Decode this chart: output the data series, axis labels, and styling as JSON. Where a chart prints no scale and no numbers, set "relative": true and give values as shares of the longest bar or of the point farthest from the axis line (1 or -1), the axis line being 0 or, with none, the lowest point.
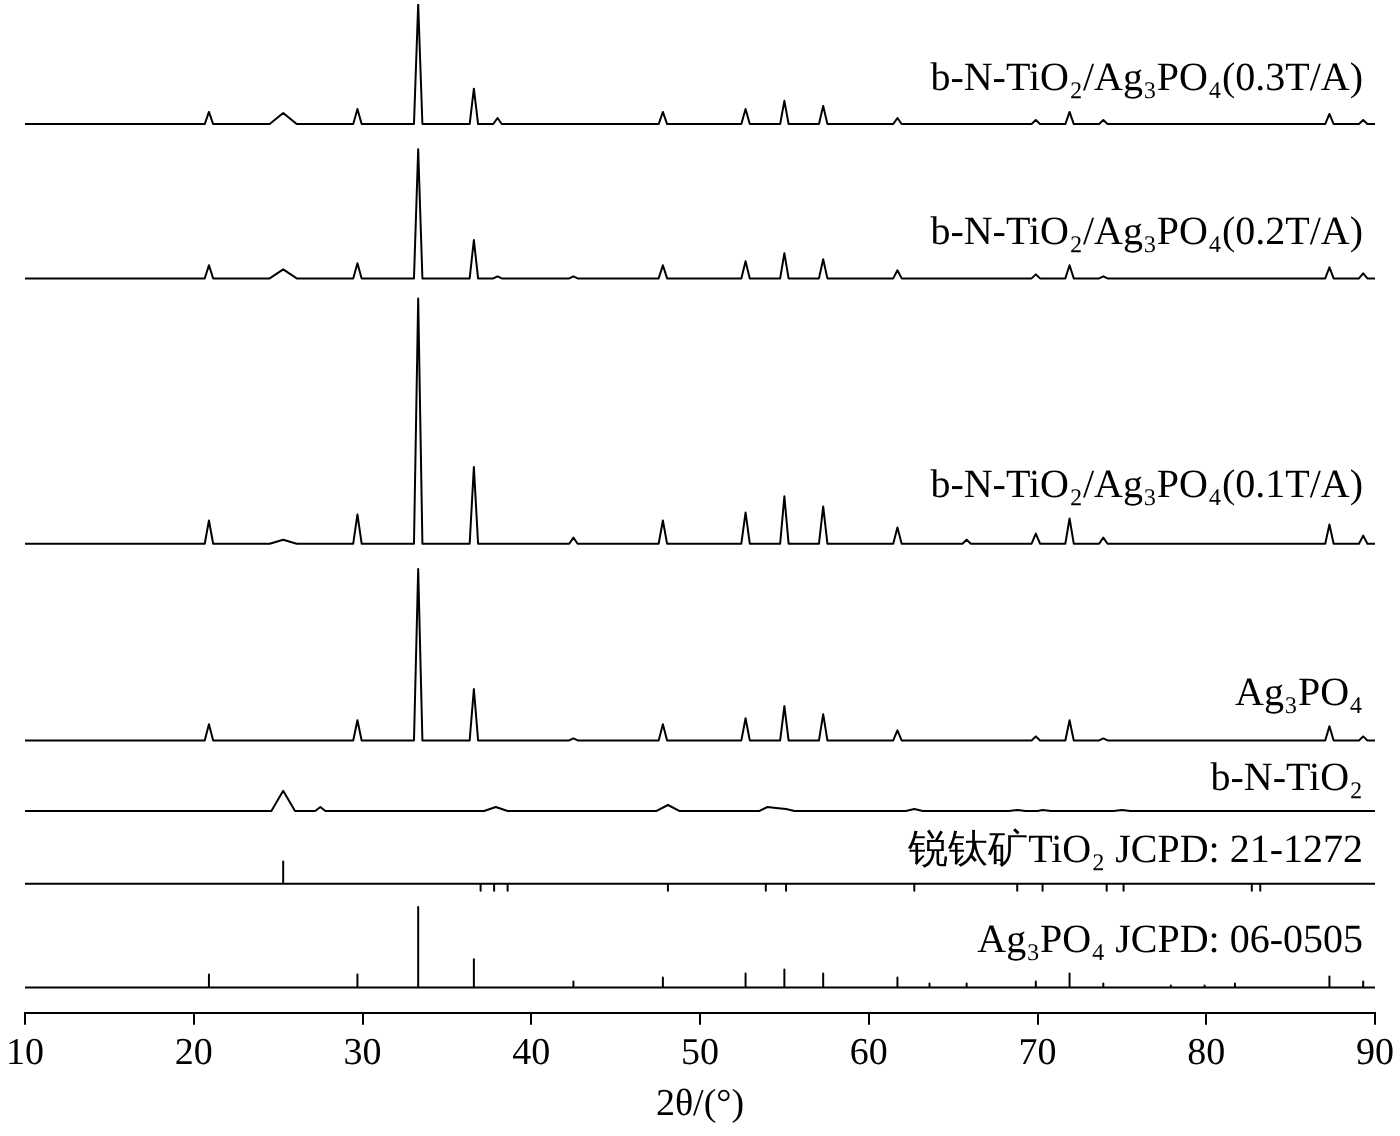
{
  "chart_data": {
    "type": "line",
    "relative": true,
    "xlabel": "2θ/(°)",
    "xlim": [
      10,
      90
    ],
    "xticks": [
      10,
      20,
      30,
      40,
      50,
      60,
      70,
      80,
      90
    ],
    "x": [
      10,
      20.65,
      20.9,
      21.15,
      24.5,
      25.3,
      26.1,
      29.45,
      29.7,
      29.95,
      33.05,
      33.3,
      33.55,
      36.35,
      36.6,
      36.85,
      37.75,
      38,
      38.25,
      42.25,
      42.5,
      42.75,
      47.55,
      47.8,
      48.05,
      52.45,
      52.7,
      52.95,
      54.75,
      55,
      55.25,
      57.05,
      57.3,
      57.55,
      61.45,
      61.7,
      61.95,
      65.55,
      65.8,
      66.05,
      69.65,
      69.9,
      70.15,
      71.65,
      71.9,
      72.15,
      73.65,
      73.9,
      74.15,
      87.05,
      87.3,
      87.55,
      89.05,
      89.3,
      89.55,
      90
    ],
    "series": [
      {
        "name": "b-N-TiO₂/Ag₃PO₄(0.3T/A)",
        "color": "#000000",
        "values": [
          0.881,
          0.881,
          0.893,
          0.881,
          0.881,
          0.892,
          0.881,
          0.881,
          0.896,
          0.881,
          0.881,
          1.0,
          0.881,
          0.881,
          0.916,
          0.881,
          0.881,
          0.887,
          0.881,
          0.881,
          0.881,
          0.881,
          0.881,
          0.893,
          0.881,
          0.881,
          0.896,
          0.881,
          0.881,
          0.904,
          0.881,
          0.881,
          0.899,
          0.881,
          0.881,
          0.887,
          0.881,
          0.881,
          0.881,
          0.881,
          0.881,
          0.885,
          0.881,
          0.881,
          0.893,
          0.881,
          0.881,
          0.885,
          0.881,
          0.881,
          0.891,
          0.881,
          0.881,
          0.885,
          0.881,
          0.881
        ]
      },
      {
        "name": "b-N-TiO₂/Ag₃PO₄(0.2T/A)",
        "color": "#000000",
        "values": [
          0.728,
          0.728,
          0.741,
          0.728,
          0.728,
          0.737,
          0.728,
          0.728,
          0.743,
          0.728,
          0.728,
          0.856,
          0.728,
          0.728,
          0.766,
          0.728,
          0.728,
          0.73,
          0.728,
          0.728,
          0.73,
          0.728,
          0.728,
          0.741,
          0.728,
          0.728,
          0.745,
          0.728,
          0.728,
          0.753,
          0.728,
          0.728,
          0.747,
          0.728,
          0.728,
          0.736,
          0.728,
          0.728,
          0.728,
          0.728,
          0.728,
          0.732,
          0.728,
          0.728,
          0.741,
          0.728,
          0.728,
          0.73,
          0.728,
          0.728,
          0.739,
          0.728,
          0.728,
          0.733,
          0.728,
          0.728
        ]
      },
      {
        "name": "b-N-TiO₂/Ag₃PO₄(0.1T/A)",
        "color": "#000000",
        "values": [
          0.465,
          0.465,
          0.488,
          0.465,
          0.465,
          0.469,
          0.465,
          0.465,
          0.494,
          0.465,
          0.465,
          0.708,
          0.465,
          0.465,
          0.541,
          0.465,
          0.465,
          0.465,
          0.465,
          0.465,
          0.471,
          0.465,
          0.465,
          0.488,
          0.465,
          0.465,
          0.496,
          0.465,
          0.465,
          0.512,
          0.465,
          0.465,
          0.502,
          0.465,
          0.465,
          0.481,
          0.465,
          0.465,
          0.469,
          0.465,
          0.465,
          0.475,
          0.465,
          0.465,
          0.49,
          0.465,
          0.465,
          0.471,
          0.465,
          0.465,
          0.484,
          0.465,
          0.465,
          0.473,
          0.465,
          0.465
        ]
      },
      {
        "name": "Ag₃PO₄",
        "color": "#000000",
        "values": [
          0.27,
          0.27,
          0.286,
          0.27,
          0.27,
          0.27,
          0.27,
          0.27,
          0.29,
          0.27,
          0.27,
          0.44,
          0.27,
          0.27,
          0.321,
          0.27,
          0.27,
          0.27,
          0.27,
          0.27,
          0.272,
          0.27,
          0.27,
          0.286,
          0.27,
          0.27,
          0.292,
          0.27,
          0.27,
          0.304,
          0.27,
          0.27,
          0.296,
          0.27,
          0.27,
          0.28,
          0.27,
          0.27,
          0.27,
          0.27,
          0.27,
          0.274,
          0.27,
          0.27,
          0.29,
          0.27,
          0.27,
          0.272,
          0.27,
          0.27,
          0.284,
          0.27,
          0.27,
          0.274,
          0.27,
          0.27
        ]
      },
      {
        "name": "b-N-TiO₂",
        "color": "#000000",
        "x": [
          10,
          24.6,
          25.3,
          26.0,
          27.2,
          27.5,
          27.8,
          37.2,
          37.9,
          38.6,
          47.4,
          48.1,
          48.8,
          53.5,
          54,
          54.5,
          55.1,
          55.6,
          62.2,
          62.7,
          63.2,
          68.3,
          68.8,
          69.3,
          70,
          70.3,
          70.8,
          74.5,
          75,
          75.5,
          90
        ],
        "values": [
          0.2,
          0.2,
          0.22,
          0.2,
          0.2,
          0.204,
          0.2,
          0.2,
          0.204,
          0.2,
          0.2,
          0.206,
          0.2,
          0.2,
          0.204,
          0.203,
          0.202,
          0.2,
          0.2,
          0.202,
          0.2,
          0.2,
          0.201,
          0.2,
          0.2,
          0.201,
          0.2,
          0.2,
          0.201,
          0.2,
          0.2
        ]
      },
      {
        "name": "锐钛矿TiO₂ JCPD: 21-1272",
        "color": "#000000",
        "x": [
          10,
          25.3,
          25.3,
          25.3,
          37,
          37,
          37,
          37.8,
          37.8,
          37.8,
          38.6,
          38.6,
          38.6,
          48.1,
          48.1,
          48.1,
          53.9,
          53.9,
          53.9,
          55.1,
          55.1,
          55.1,
          62.7,
          62.7,
          62.7,
          68.8,
          68.8,
          68.8,
          70.3,
          70.3,
          70.3,
          74.1,
          74.1,
          74.1,
          75.1,
          75.1,
          75.1,
          82.7,
          82.7,
          82.7,
          83.2,
          83.2,
          83.2,
          90
        ],
        "values": [
          0.128,
          0.128,
          0.15,
          0.128,
          0.128,
          0.121,
          0.128,
          0.128,
          0.121,
          0.128,
          0.128,
          0.121,
          0.128,
          0.128,
          0.121,
          0.128,
          0.128,
          0.121,
          0.128,
          0.128,
          0.121,
          0.128,
          0.128,
          0.121,
          0.128,
          0.128,
          0.121,
          0.128,
          0.128,
          0.121,
          0.128,
          0.128,
          0.121,
          0.128,
          0.128,
          0.121,
          0.128,
          0.128,
          0.121,
          0.128,
          0.128,
          0.121,
          0.128,
          0.128
        ]
      },
      {
        "name": "Ag₃PO₄ JCPD: 06-0505",
        "color": "#000000",
        "x": [
          10,
          20.9,
          20.9,
          20.9,
          29.7,
          29.7,
          29.7,
          33.3,
          33.3,
          33.3,
          36.6,
          36.6,
          36.6,
          42.5,
          42.5,
          42.5,
          47.8,
          47.8,
          47.8,
          52.7,
          52.7,
          52.7,
          55,
          55,
          55,
          57.3,
          57.3,
          57.3,
          61.7,
          61.7,
          61.7,
          63.6,
          63.6,
          63.6,
          65.8,
          65.8,
          65.8,
          69.9,
          69.9,
          69.9,
          71.9,
          71.9,
          71.9,
          73.9,
          73.9,
          73.9,
          77.9,
          77.9,
          77.9,
          79.9,
          79.9,
          79.9,
          81.7,
          81.7,
          81.7,
          87.3,
          87.3,
          87.3,
          89.3,
          89.3,
          89.3,
          90
        ],
        "values": [
          0.025,
          0.025,
          0.038,
          0.025,
          0.025,
          0.038,
          0.025,
          0.025,
          0.105,
          0.025,
          0.025,
          0.053,
          0.025,
          0.025,
          0.031,
          0.025,
          0.025,
          0.035,
          0.025,
          0.025,
          0.039,
          0.025,
          0.025,
          0.043,
          0.025,
          0.025,
          0.039,
          0.025,
          0.025,
          0.035,
          0.025,
          0.025,
          0.029,
          0.025,
          0.025,
          0.029,
          0.025,
          0.025,
          0.031,
          0.025,
          0.025,
          0.039,
          0.025,
          0.025,
          0.029,
          0.025,
          0.025,
          0.027,
          0.025,
          0.025,
          0.027,
          0.025,
          0.025,
          0.029,
          0.025,
          0.025,
          0.036,
          0.025,
          0.025,
          0.031,
          0.025,
          0.025
        ]
      }
    ]
  }
}
